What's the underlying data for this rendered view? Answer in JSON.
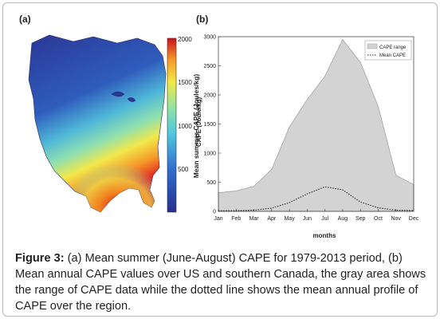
{
  "panel_a": {
    "label": "(a)",
    "colorbar_label": "Mean summer CAPE (Joules/kg)",
    "colorbar_ticks": [
      "2000",
      "1500",
      "1000",
      "500"
    ],
    "colors": {
      "low": "#2b3a9f",
      "mid": "#5fd1d6",
      "high": "#e81b1b"
    }
  },
  "chart_data": {
    "type": "area",
    "title": "(b)",
    "xlabel": "months",
    "ylabel": "CAPE (Joule/kg)",
    "ylim": [
      0,
      3000
    ],
    "yticks": [
      0,
      500,
      1000,
      1500,
      2000,
      2500,
      3000
    ],
    "categories": [
      "Jan",
      "Feb",
      "Mar",
      "Apr",
      "May",
      "Jun",
      "Jul",
      "Aug",
      "Sep",
      "Oct",
      "Nov",
      "Dec"
    ],
    "legend_position": "top-right",
    "series": [
      {
        "name": "CAPE range",
        "style": "filled-area",
        "color": "#d3d3d3",
        "lower": [
          0,
          0,
          0,
          0,
          0,
          0,
          0,
          0,
          0,
          0,
          0,
          0
        ],
        "upper": [
          320,
          350,
          430,
          720,
          1450,
          1920,
          2320,
          2950,
          2560,
          1800,
          620,
          460
        ]
      },
      {
        "name": "Mean CAPE",
        "style": "dotted-line",
        "color": "#222222",
        "values": [
          10,
          12,
          20,
          55,
          150,
          300,
          420,
          370,
          160,
          60,
          20,
          12
        ]
      }
    ]
  },
  "caption": {
    "label": "Figure 3:",
    "text": " (a) Mean summer (June-August) CAPE for 1979-2013 period, (b) Mean annual CAPE values over US and southern Canada, the gray area shows the range of CAPE data while the dotted line shows the mean annual profile of CAPE over the region."
  }
}
